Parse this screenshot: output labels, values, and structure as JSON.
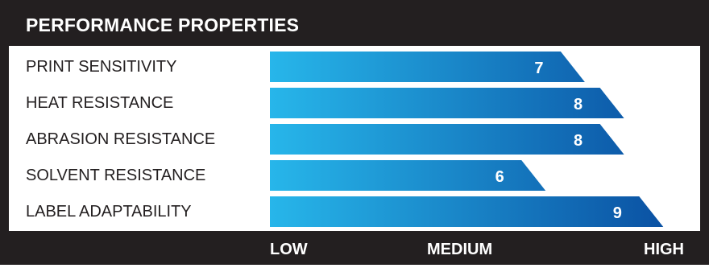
{
  "chart_data": {
    "type": "bar",
    "orientation": "horizontal",
    "title": "PERFORMANCE PROPERTIES",
    "categories": [
      "PRINT SENSITIVITY",
      "HEAT RESISTANCE",
      "ABRASION RESISTANCE",
      "SOLVENT RESISTANCE",
      "LABEL ADAPTABILITY"
    ],
    "values": [
      7,
      8,
      8,
      6,
      9
    ],
    "xlim": [
      0,
      10
    ],
    "scale_labels": [
      "LOW",
      "MEDIUM",
      "HIGH"
    ],
    "grid": false,
    "legend": "none",
    "colors": {
      "bar_light": "#27b6ea",
      "bar_dark": "#0a50a2",
      "frame": "#231f20",
      "value_text": "#ffffff"
    }
  }
}
